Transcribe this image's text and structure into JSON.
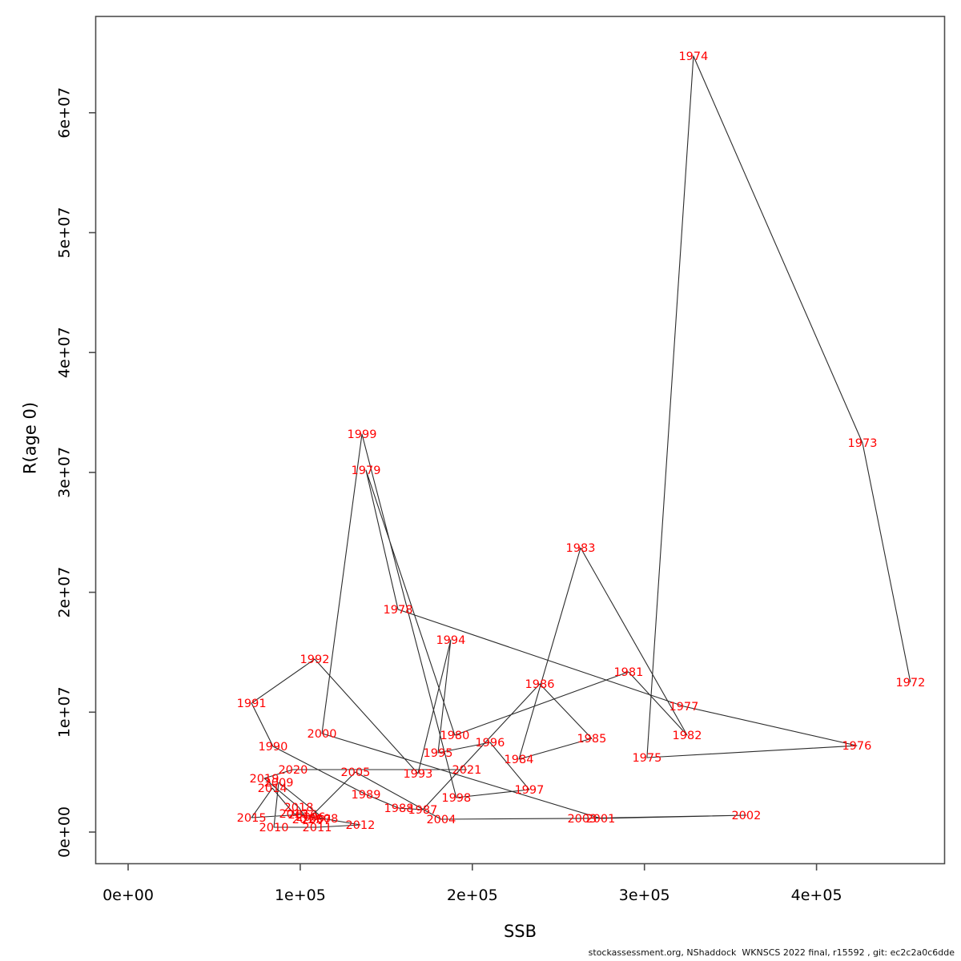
{
  "figure": {
    "caption": "stockassessment.org, NShaddock  WKNSCS 2022 final, r15592 , git: ec2c2a0c6dde"
  },
  "colors": {
    "year_label": "#FF0000",
    "path_line": "#2B2B2B",
    "axis_stroke": "#4D4D4D",
    "tick_text": "#000000",
    "background": "#FFFFFF"
  },
  "chart_data": {
    "type": "scatter",
    "subtype": "connected-scatter-chronological",
    "title": "",
    "xlabel": "SSB",
    "ylabel": "R(age 0)",
    "grid": false,
    "legend": false,
    "xlim": [
      -19000,
      475000
    ],
    "ylim": [
      -2600000,
      68100000
    ],
    "x_ticks": [
      {
        "value": 0,
        "label": "0e+00"
      },
      {
        "value": 100000,
        "label": "1e+05"
      },
      {
        "value": 200000,
        "label": "2e+05"
      },
      {
        "value": 300000,
        "label": "3e+05"
      },
      {
        "value": 400000,
        "label": "4e+05"
      }
    ],
    "y_ticks": [
      {
        "value": 0,
        "label": "0e+00"
      },
      {
        "value": 10000000,
        "label": "1e+07"
      },
      {
        "value": 20000000,
        "label": "2e+07"
      },
      {
        "value": 30000000,
        "label": "3e+07"
      },
      {
        "value": 40000000,
        "label": "4e+07"
      },
      {
        "value": 50000000,
        "label": "5e+07"
      },
      {
        "value": 60000000,
        "label": "6e+07"
      }
    ],
    "points": [
      {
        "year": "1972",
        "ssb": 454600,
        "rec": 12490000
      },
      {
        "year": "1973",
        "ssb": 426700,
        "rec": 32460000
      },
      {
        "year": "1974",
        "ssb": 328500,
        "rec": 64730000
      },
      {
        "year": "1975",
        "ssb": 301500,
        "rec": 6210000
      },
      {
        "year": "1976",
        "ssb": 423400,
        "rec": 7210000
      },
      {
        "year": "1977",
        "ssb": 322900,
        "rec": 10490000
      },
      {
        "year": "1978",
        "ssb": 156800,
        "rec": 18570000
      },
      {
        "year": "1979",
        "ssb": 138200,
        "rec": 30190000
      },
      {
        "year": "1980",
        "ssb": 189800,
        "rec": 8080000
      },
      {
        "year": "1981",
        "ssb": 290800,
        "rec": 13360000
      },
      {
        "year": "1982",
        "ssb": 324800,
        "rec": 8080000
      },
      {
        "year": "1983",
        "ssb": 262900,
        "rec": 23710000
      },
      {
        "year": "1984",
        "ssb": 227100,
        "rec": 6080000
      },
      {
        "year": "1985",
        "ssb": 269400,
        "rec": 7810000
      },
      {
        "year": "1986",
        "ssb": 239200,
        "rec": 12360000
      },
      {
        "year": "1987",
        "ssb": 171200,
        "rec": 1870000
      },
      {
        "year": "1988",
        "ssb": 157300,
        "rec": 2000000
      },
      {
        "year": "1989",
        "ssb": 138200,
        "rec": 3140000
      },
      {
        "year": "1990",
        "ssb": 84200,
        "rec": 7150000
      },
      {
        "year": "1991",
        "ssb": 71700,
        "rec": 10750000
      },
      {
        "year": "1992",
        "ssb": 108400,
        "rec": 14430000
      },
      {
        "year": "1993",
        "ssb": 168400,
        "rec": 4880000
      },
      {
        "year": "1994",
        "ssb": 187500,
        "rec": 16030000
      },
      {
        "year": "1995",
        "ssb": 180100,
        "rec": 6610000
      },
      {
        "year": "1996",
        "ssb": 210300,
        "rec": 7480000
      },
      {
        "year": "1997",
        "ssb": 233100,
        "rec": 3540000
      },
      {
        "year": "1998",
        "ssb": 190700,
        "rec": 2870000
      },
      {
        "year": "1999",
        "ssb": 135900,
        "rec": 33190000
      },
      {
        "year": "2000",
        "ssb": 112600,
        "rec": 8220000
      },
      {
        "year": "2001",
        "ssb": 274500,
        "rec": 1140000
      },
      {
        "year": "2002",
        "ssb": 359200,
        "rec": 1400000
      },
      {
        "year": "2003",
        "ssb": 263800,
        "rec": 1140000
      },
      {
        "year": "2004",
        "ssb": 181900,
        "rec": 1070000
      },
      {
        "year": "2005",
        "ssb": 132100,
        "rec": 5010000
      },
      {
        "year": "2006",
        "ssb": 106100,
        "rec": 1270000
      },
      {
        "year": "2007",
        "ssb": 109300,
        "rec": 1070000
      },
      {
        "year": "2008",
        "ssb": 113500,
        "rec": 1140000
      },
      {
        "year": "2009",
        "ssb": 87500,
        "rec": 4140000
      },
      {
        "year": "2010",
        "ssb": 84700,
        "rec": 400000
      },
      {
        "year": "2011",
        "ssb": 109800,
        "rec": 400000
      },
      {
        "year": "2012",
        "ssb": 134900,
        "rec": 600000
      },
      {
        "year": "2013",
        "ssb": 96300,
        "rec": 1540000
      },
      {
        "year": "2014",
        "ssb": 83800,
        "rec": 3670000
      },
      {
        "year": "2015",
        "ssb": 71700,
        "rec": 1200000
      },
      {
        "year": "2016",
        "ssb": 101400,
        "rec": 1470000
      },
      {
        "year": "2017",
        "ssb": 103800,
        "rec": 1070000
      },
      {
        "year": "2018",
        "ssb": 99100,
        "rec": 2070000
      },
      {
        "year": "2019",
        "ssb": 79100,
        "rec": 4480000
      },
      {
        "year": "2020",
        "ssb": 95800,
        "rec": 5210000
      },
      {
        "year": "2021",
        "ssb": 196800,
        "rec": 5210000
      }
    ]
  }
}
